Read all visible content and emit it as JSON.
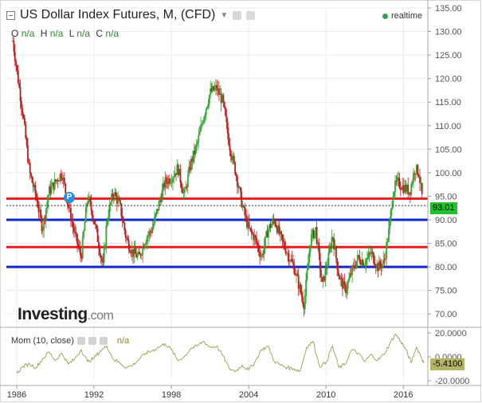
{
  "header": {
    "title": "US Dollar Index Futures, M, (CFD)",
    "realtime": "realtime",
    "ohlc": [
      {
        "key": "O",
        "value": "n/a"
      },
      {
        "key": "H",
        "value": "n/a"
      },
      {
        "key": "L",
        "value": "n/a"
      },
      {
        "key": "C",
        "value": "n/a"
      }
    ]
  },
  "logo": {
    "main": "Investing",
    "suffix": ".com"
  },
  "marker": "P",
  "colors": {
    "up": "#2ea82e",
    "down": "#c21a1a",
    "support_red": "#e61e1e",
    "support_blue": "#1228c8",
    "indicator": "#a6a660"
  },
  "chart_data": [
    {
      "type": "candlestick",
      "title": "US Dollar Index Futures, M, (CFD)",
      "ylim": [
        68,
        135
      ],
      "y_ticks": [
        "135.00",
        "130.00",
        "125.00",
        "120.00",
        "115.00",
        "110.00",
        "105.00",
        "100.00",
        "95.00",
        "90.00",
        "85.00",
        "80.00",
        "75.00",
        "70.00"
      ],
      "x_ticks": [
        "1986",
        "1992",
        "1998",
        "2004",
        "2010",
        "2016"
      ],
      "xlim": [
        1985.2,
        2017.9
      ],
      "last_price": "93.01",
      "horizontal_lines": [
        {
          "value": 94.5,
          "color": "red"
        },
        {
          "value": 90.0,
          "color": "blue"
        },
        {
          "value": 84.2,
          "color": "red"
        },
        {
          "value": 80.0,
          "color": "blue"
        }
      ],
      "close_path": [
        [
          1985.7,
          128
        ],
        [
          1986.0,
          122
        ],
        [
          1986.5,
          112
        ],
        [
          1987.0,
          100
        ],
        [
          1987.5,
          95
        ],
        [
          1988.0,
          88
        ],
        [
          1988.5,
          96
        ],
        [
          1989.0,
          98
        ],
        [
          1989.5,
          100
        ],
        [
          1990.0,
          93
        ],
        [
          1990.5,
          87
        ],
        [
          1991.0,
          82
        ],
        [
          1991.5,
          95
        ],
        [
          1992.0,
          90
        ],
        [
          1992.7,
          80
        ],
        [
          1993.0,
          90
        ],
        [
          1993.5,
          96
        ],
        [
          1994.0,
          93
        ],
        [
          1994.5,
          86
        ],
        [
          1995.0,
          83
        ],
        [
          1995.5,
          82
        ],
        [
          1996.0,
          86
        ],
        [
          1996.5,
          88
        ],
        [
          1997.0,
          93
        ],
        [
          1997.5,
          98
        ],
        [
          1998.0,
          99
        ],
        [
          1998.5,
          101
        ],
        [
          1999.0,
          95
        ],
        [
          1999.5,
          102
        ],
        [
          2000.0,
          106
        ],
        [
          2000.5,
          112
        ],
        [
          2001.0,
          117
        ],
        [
          2001.5,
          118
        ],
        [
          2002.0,
          115
        ],
        [
          2002.5,
          106
        ],
        [
          2003.0,
          100
        ],
        [
          2003.5,
          93
        ],
        [
          2004.0,
          88
        ],
        [
          2004.5,
          86
        ],
        [
          2005.0,
          82
        ],
        [
          2005.5,
          88
        ],
        [
          2006.0,
          90
        ],
        [
          2006.5,
          86
        ],
        [
          2007.0,
          83
        ],
        [
          2007.5,
          80
        ],
        [
          2008.0,
          75
        ],
        [
          2008.3,
          72
        ],
        [
          2008.8,
          86
        ],
        [
          2009.2,
          88
        ],
        [
          2009.7,
          76
        ],
        [
          2010.2,
          82
        ],
        [
          2010.5,
          87
        ],
        [
          2011.0,
          78
        ],
        [
          2011.5,
          75
        ],
        [
          2012.0,
          79
        ],
        [
          2012.5,
          82
        ],
        [
          2013.0,
          81
        ],
        [
          2013.5,
          83
        ],
        [
          2014.0,
          80
        ],
        [
          2014.5,
          81
        ],
        [
          2014.9,
          88
        ],
        [
          2015.2,
          96
        ],
        [
          2015.5,
          98
        ],
        [
          2016.0,
          97
        ],
        [
          2016.5,
          96
        ],
        [
          2016.9,
          101
        ],
        [
          2017.2,
          100
        ],
        [
          2017.5,
          94
        ]
      ]
    },
    {
      "type": "line",
      "name": "Mom (10, close)",
      "value_label": "n/a",
      "ylim": [
        -20,
        20
      ],
      "y_ticks": [
        "20.0000",
        "0.0000",
        "-20.0000"
      ],
      "last_value": "-5.4100",
      "series": [
        [
          1986.0,
          -14
        ],
        [
          1986.5,
          -8
        ],
        [
          1987.0,
          -6
        ],
        [
          1987.5,
          -9
        ],
        [
          1988.0,
          -2
        ],
        [
          1988.5,
          4
        ],
        [
          1989.0,
          -3
        ],
        [
          1989.5,
          3
        ],
        [
          1990.0,
          -6
        ],
        [
          1990.5,
          -2
        ],
        [
          1991.0,
          6
        ],
        [
          1991.5,
          -4
        ],
        [
          1992.0,
          -1
        ],
        [
          1992.5,
          5
        ],
        [
          1993.0,
          9
        ],
        [
          1993.5,
          -2
        ],
        [
          1994.0,
          -5
        ],
        [
          1994.5,
          -9
        ],
        [
          1995.0,
          -7
        ],
        [
          1995.5,
          -2
        ],
        [
          1996.0,
          3
        ],
        [
          1996.5,
          5
        ],
        [
          1997.0,
          8
        ],
        [
          1997.5,
          11
        ],
        [
          1998.0,
          6
        ],
        [
          1998.5,
          -3
        ],
        [
          1999.0,
          0
        ],
        [
          1999.5,
          7
        ],
        [
          2000.0,
          9
        ],
        [
          2000.5,
          13
        ],
        [
          2001.0,
          8
        ],
        [
          2001.5,
          9
        ],
        [
          2002.0,
          1
        ],
        [
          2002.5,
          -10
        ],
        [
          2003.0,
          -12
        ],
        [
          2003.5,
          -7
        ],
        [
          2004.0,
          -11
        ],
        [
          2004.5,
          -4
        ],
        [
          2005.0,
          6
        ],
        [
          2005.5,
          9
        ],
        [
          2006.0,
          -4
        ],
        [
          2006.5,
          -7
        ],
        [
          2007.0,
          -9
        ],
        [
          2007.5,
          -10
        ],
        [
          2008.0,
          -12
        ],
        [
          2008.5,
          8
        ],
        [
          2009.0,
          13
        ],
        [
          2009.5,
          -8
        ],
        [
          2010.0,
          -5
        ],
        [
          2010.5,
          9
        ],
        [
          2011.0,
          -9
        ],
        [
          2011.5,
          -6
        ],
        [
          2012.0,
          6
        ],
        [
          2012.5,
          3
        ],
        [
          2013.0,
          -4
        ],
        [
          2013.5,
          2
        ],
        [
          2014.0,
          -3
        ],
        [
          2014.5,
          2
        ],
        [
          2015.0,
          12
        ],
        [
          2015.4,
          19
        ],
        [
          2015.8,
          13
        ],
        [
          2016.2,
          6
        ],
        [
          2016.6,
          -5
        ],
        [
          2017.0,
          8
        ],
        [
          2017.3,
          2
        ],
        [
          2017.6,
          -5.41
        ]
      ]
    }
  ]
}
